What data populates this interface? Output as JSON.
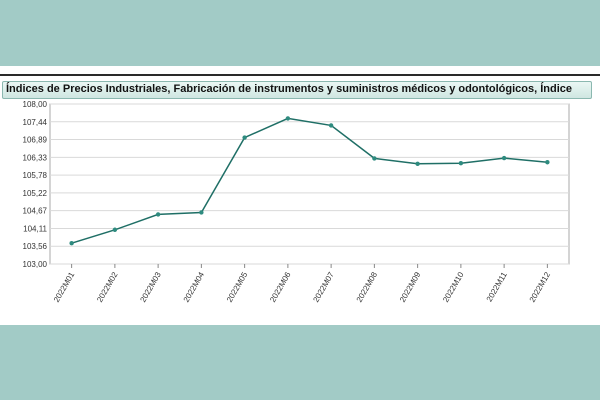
{
  "chart_data": {
    "type": "line",
    "title": "Índices de Precios Industriales, Fabricación de instrumentos y suministros médicos y odontológicos, Índice",
    "categories": [
      "2022M01",
      "2022M02",
      "2022M03",
      "2022M04",
      "2022M05",
      "2022M06",
      "2022M07",
      "2022M08",
      "2022M09",
      "2022M10",
      "2022M11",
      "2022M12"
    ],
    "series": [
      {
        "values": [
          103.65,
          104.07,
          104.55,
          104.61,
          106.95,
          107.55,
          107.33,
          106.3,
          106.13,
          106.15,
          106.31,
          106.18
        ]
      }
    ],
    "y_ticks": [
      "108,00",
      "107,44",
      "106,89",
      "106,33",
      "105,78",
      "105,22",
      "104,67",
      "104,11",
      "103,56",
      "103,00"
    ],
    "ylim": [
      103.0,
      108.0
    ],
    "grid": true,
    "line_color": "#1f6f66",
    "marker_color": "#2e8b7f"
  }
}
